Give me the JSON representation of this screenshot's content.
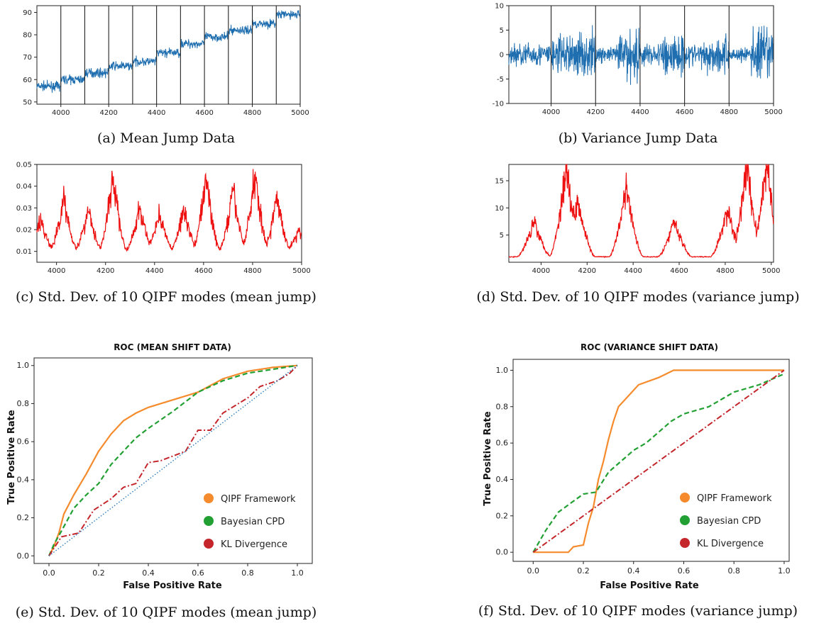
{
  "captions": {
    "a": "(a) Mean Jump Data",
    "b": "(b) Variance Jump Data",
    "c": "(c) Std. Dev. of 10 QIPF modes (mean jump)",
    "d": "(d) Std. Dev. of 10 QIPF modes (variance jump)",
    "e": "(e) Std. Dev. of 10 QIPF modes (mean jump)",
    "f": "(f) Std. Dev. of 10 QIPF modes (variance jump)"
  },
  "colors": {
    "signal": "#1f6fb0",
    "stddev": "#ee1111",
    "qipf": "#f58b2c",
    "bayesian": "#22a033",
    "kl": "#c4262b",
    "diag": "#2b7bbf"
  },
  "chart_data": [
    {
      "id": "a",
      "type": "line",
      "xlim": [
        3900,
        5000
      ],
      "ylim": [
        49,
        93
      ],
      "xticks": [
        4000,
        4200,
        4400,
        4600,
        4800,
        5000
      ],
      "yticks": [
        50,
        60,
        70,
        80,
        90
      ],
      "changepoints": [
        4000,
        4100,
        4200,
        4300,
        4400,
        4500,
        4600,
        4700,
        4800,
        4900,
        5000
      ],
      "segment_means": [
        {
          "from": 3900,
          "to": 4000,
          "mean": 57
        },
        {
          "from": 4000,
          "to": 4100,
          "mean": 60
        },
        {
          "from": 4100,
          "to": 4200,
          "mean": 63
        },
        {
          "from": 4200,
          "to": 4300,
          "mean": 66
        },
        {
          "from": 4300,
          "to": 4400,
          "mean": 68
        },
        {
          "from": 4400,
          "to": 4500,
          "mean": 72
        },
        {
          "from": 4500,
          "to": 4600,
          "mean": 76
        },
        {
          "from": 4600,
          "to": 4700,
          "mean": 79
        },
        {
          "from": 4700,
          "to": 4800,
          "mean": 82
        },
        {
          "from": 4800,
          "to": 4900,
          "mean": 85
        },
        {
          "from": 4900,
          "to": 5000,
          "mean": 89
        }
      ],
      "noise_amplitude": 2
    },
    {
      "id": "b",
      "type": "line",
      "xlim": [
        3810,
        5000
      ],
      "ylim": [
        -10,
        10
      ],
      "xticks": [
        4000,
        4200,
        4400,
        4600,
        4800,
        5000
      ],
      "yticks": [
        10,
        5,
        0,
        -5,
        -10
      ],
      "changepoints": [
        4000,
        4100,
        4200,
        4300,
        4400,
        4500,
        4600,
        4700,
        4800,
        4900,
        5000
      ],
      "segment_amplitudes": [
        {
          "from": 3810,
          "to": 4000,
          "amp": 3
        },
        {
          "from": 4000,
          "to": 4100,
          "amp": 5
        },
        {
          "from": 4100,
          "to": 4200,
          "amp": 6
        },
        {
          "from": 4200,
          "to": 4300,
          "amp": 2
        },
        {
          "from": 4300,
          "to": 4400,
          "amp": 7
        },
        {
          "from": 4400,
          "to": 4500,
          "amp": 3
        },
        {
          "from": 4500,
          "to": 4600,
          "amp": 6
        },
        {
          "from": 4600,
          "to": 4700,
          "amp": 3
        },
        {
          "from": 4700,
          "to": 4800,
          "amp": 5
        },
        {
          "from": 4800,
          "to": 4900,
          "amp": 2
        },
        {
          "from": 4900,
          "to": 5000,
          "amp": 7
        }
      ]
    },
    {
      "id": "c",
      "type": "line",
      "xlim": [
        3920,
        5000
      ],
      "ylim": [
        0.005,
        0.05
      ],
      "xticks": [
        4000,
        4200,
        4400,
        4600,
        4800,
        5000
      ],
      "yticks": [
        0.05,
        0.04,
        0.03,
        0.02,
        0.01
      ],
      "peaks": [
        {
          "x": 3935,
          "y": 0.025
        },
        {
          "x": 4030,
          "y": 0.035
        },
        {
          "x": 4130,
          "y": 0.03
        },
        {
          "x": 4230,
          "y": 0.045
        },
        {
          "x": 4340,
          "y": 0.03
        },
        {
          "x": 4420,
          "y": 0.028
        },
        {
          "x": 4520,
          "y": 0.03
        },
        {
          "x": 4610,
          "y": 0.044
        },
        {
          "x": 4720,
          "y": 0.038
        },
        {
          "x": 4810,
          "y": 0.046
        },
        {
          "x": 4900,
          "y": 0.035
        },
        {
          "x": 4990,
          "y": 0.02
        }
      ],
      "baseline": 0.01
    },
    {
      "id": "d",
      "type": "line",
      "xlim": [
        3860,
        5010
      ],
      "ylim": [
        0,
        18
      ],
      "xticks": [
        4000,
        4200,
        4400,
        4600,
        4800,
        5000
      ],
      "yticks": [
        15,
        10,
        5
      ],
      "peaks": [
        {
          "x": 3970,
          "y": 8
        },
        {
          "x": 4110,
          "y": 18
        },
        {
          "x": 4160,
          "y": 12
        },
        {
          "x": 4370,
          "y": 14
        },
        {
          "x": 4580,
          "y": 8
        },
        {
          "x": 4810,
          "y": 10
        },
        {
          "x": 4895,
          "y": 18
        },
        {
          "x": 4980,
          "y": 18
        }
      ],
      "baseline": 1
    },
    {
      "id": "e",
      "type": "line",
      "title": "ROC (MEAN SHIFT DATA)",
      "xlabel": "False Positive Rate",
      "ylabel": "True Positive Rate",
      "xlim": [
        -0.06,
        1.06
      ],
      "ylim": [
        -0.04,
        1.04
      ],
      "xticks": [
        0.0,
        0.2,
        0.4,
        0.6,
        0.8,
        1.0
      ],
      "yticks": [
        0.0,
        0.2,
        0.4,
        0.6,
        0.8,
        1.0
      ],
      "legend_position": "bottom-right",
      "legend": [
        "QIPF Framework",
        "Bayesian CPD",
        "KL Divergence"
      ],
      "series": [
        {
          "name": "QIPF Framework",
          "style": "solid",
          "points": [
            [
              0,
              0
            ],
            [
              0.02,
              0.05
            ],
            [
              0.04,
              0.12
            ],
            [
              0.06,
              0.22
            ],
            [
              0.1,
              0.32
            ],
            [
              0.15,
              0.43
            ],
            [
              0.2,
              0.55
            ],
            [
              0.25,
              0.64
            ],
            [
              0.3,
              0.71
            ],
            [
              0.35,
              0.75
            ],
            [
              0.4,
              0.78
            ],
            [
              0.5,
              0.82
            ],
            [
              0.6,
              0.86
            ],
            [
              0.7,
              0.93
            ],
            [
              0.8,
              0.97
            ],
            [
              0.9,
              0.99
            ],
            [
              1.0,
              1.0
            ]
          ]
        },
        {
          "name": "Bayesian CPD",
          "style": "dashed",
          "points": [
            [
              0,
              0
            ],
            [
              0.02,
              0.06
            ],
            [
              0.05,
              0.13
            ],
            [
              0.1,
              0.25
            ],
            [
              0.15,
              0.32
            ],
            [
              0.2,
              0.38
            ],
            [
              0.25,
              0.48
            ],
            [
              0.3,
              0.55
            ],
            [
              0.35,
              0.62
            ],
            [
              0.4,
              0.67
            ],
            [
              0.5,
              0.76
            ],
            [
              0.6,
              0.86
            ],
            [
              0.7,
              0.92
            ],
            [
              0.8,
              0.96
            ],
            [
              0.9,
              0.98
            ],
            [
              1.0,
              1.0
            ]
          ]
        },
        {
          "name": "KL Divergence",
          "style": "dashdot",
          "points": [
            [
              0,
              0
            ],
            [
              0.05,
              0.1
            ],
            [
              0.12,
              0.12
            ],
            [
              0.18,
              0.24
            ],
            [
              0.25,
              0.3
            ],
            [
              0.3,
              0.36
            ],
            [
              0.35,
              0.38
            ],
            [
              0.4,
              0.49
            ],
            [
              0.45,
              0.5
            ],
            [
              0.55,
              0.55
            ],
            [
              0.6,
              0.66
            ],
            [
              0.65,
              0.66
            ],
            [
              0.7,
              0.75
            ],
            [
              0.8,
              0.83
            ],
            [
              0.85,
              0.89
            ],
            [
              0.92,
              0.92
            ],
            [
              0.97,
              0.96
            ],
            [
              1.0,
              1.0
            ]
          ]
        },
        {
          "style": "dotted",
          "points": [
            [
              0,
              0
            ],
            [
              1,
              1
            ]
          ]
        }
      ]
    },
    {
      "id": "f",
      "type": "line",
      "title": "ROC (VARIANCE SHIFT DATA)",
      "xlabel": "False Positive Rate",
      "ylabel": "True Positive Rate",
      "xlim": [
        -0.08,
        1.02
      ],
      "ylim": [
        -0.05,
        1.06
      ],
      "xticks": [
        0.0,
        0.2,
        0.4,
        0.6,
        0.8,
        1.0
      ],
      "yticks": [
        0.0,
        0.2,
        0.4,
        0.6,
        0.8,
        1.0
      ],
      "legend_position": "bottom-right",
      "legend": [
        "QIPF Framework",
        "Bayesian CPD",
        "KL Divergence"
      ],
      "series": [
        {
          "name": "QIPF Framework",
          "style": "solid",
          "points": [
            [
              0,
              0
            ],
            [
              0.14,
              0.0
            ],
            [
              0.16,
              0.03
            ],
            [
              0.2,
              0.04
            ],
            [
              0.22,
              0.16
            ],
            [
              0.24,
              0.25
            ],
            [
              0.26,
              0.4
            ],
            [
              0.28,
              0.5
            ],
            [
              0.3,
              0.62
            ],
            [
              0.32,
              0.72
            ],
            [
              0.34,
              0.8
            ],
            [
              0.38,
              0.86
            ],
            [
              0.42,
              0.92
            ],
            [
              0.5,
              0.96
            ],
            [
              0.56,
              1.0
            ],
            [
              1.0,
              1.0
            ]
          ]
        },
        {
          "name": "Bayesian CPD",
          "style": "dashed",
          "points": [
            [
              0,
              0
            ],
            [
              0.05,
              0.12
            ],
            [
              0.1,
              0.22
            ],
            [
              0.15,
              0.27
            ],
            [
              0.2,
              0.32
            ],
            [
              0.25,
              0.33
            ],
            [
              0.3,
              0.44
            ],
            [
              0.35,
              0.5
            ],
            [
              0.4,
              0.56
            ],
            [
              0.45,
              0.6
            ],
            [
              0.5,
              0.66
            ],
            [
              0.55,
              0.72
            ],
            [
              0.6,
              0.76
            ],
            [
              0.7,
              0.8
            ],
            [
              0.8,
              0.88
            ],
            [
              0.9,
              0.92
            ],
            [
              1.0,
              0.98
            ]
          ]
        },
        {
          "name": "KL Divergence",
          "style": "dashdot",
          "points": [
            [
              0,
              0
            ],
            [
              1,
              1
            ]
          ]
        }
      ]
    }
  ]
}
